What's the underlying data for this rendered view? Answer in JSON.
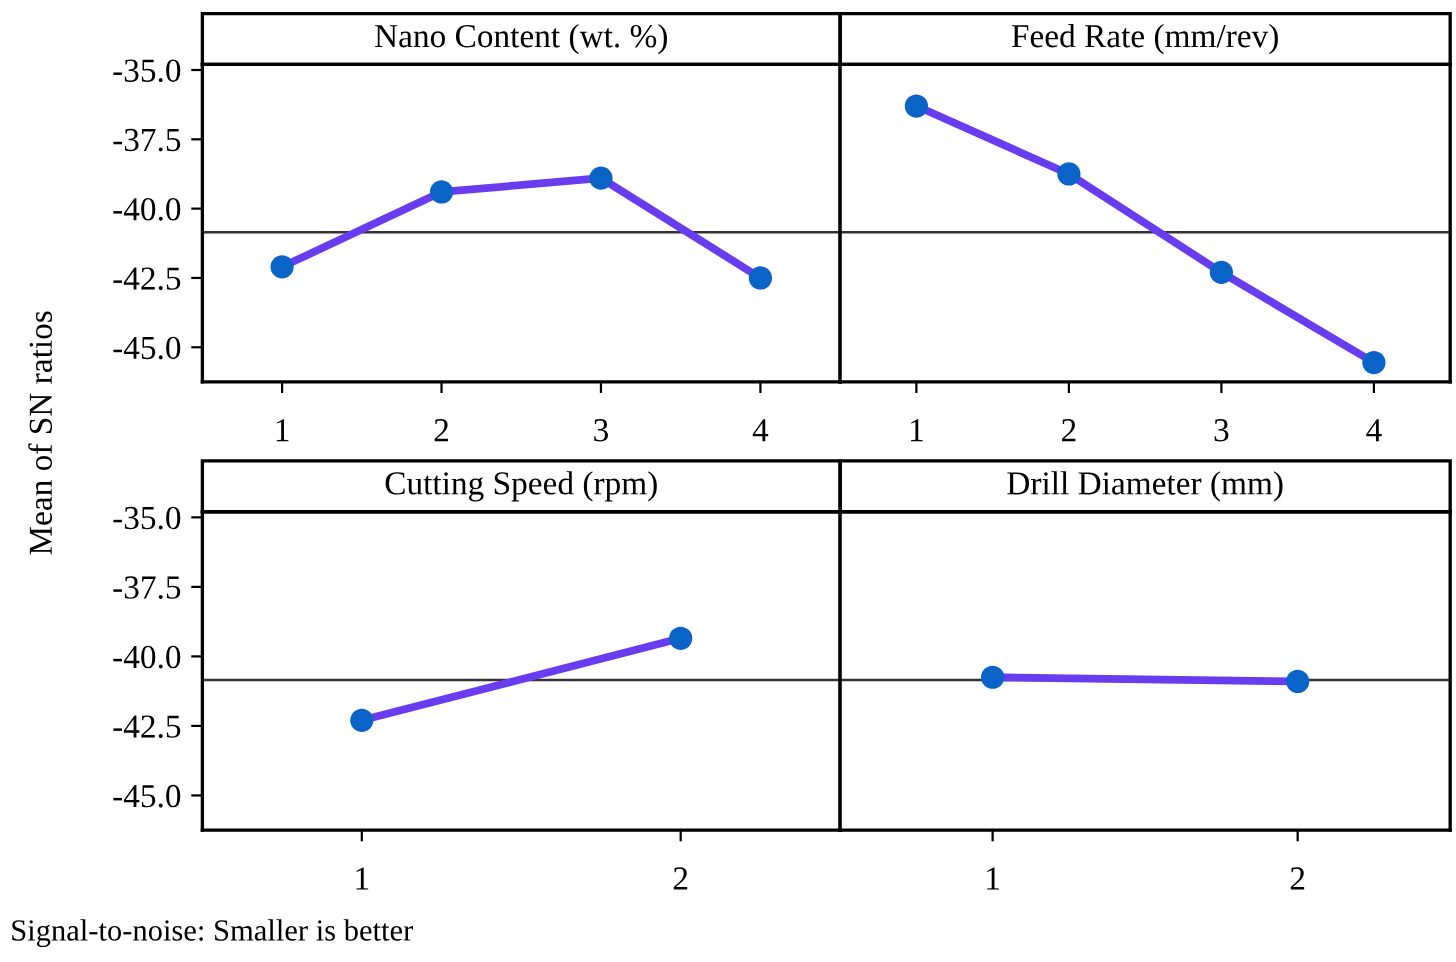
{
  "chart_data": [
    {
      "type": "line",
      "title": "Nano Content (wt. %)",
      "ylabel": "Mean of SN ratios",
      "x": [
        1,
        2,
        3,
        4
      ],
      "xlim": [
        0.5,
        4.5
      ],
      "xticks": [
        1,
        2,
        3,
        4
      ],
      "ylim": [
        -46.25,
        -34.8
      ],
      "yticks": [
        {
          "value": -35,
          "label": "-35.0"
        },
        {
          "value": -37.5,
          "label": "-37.5"
        },
        {
          "value": -40,
          "label": "-40.0"
        },
        {
          "value": -42.5,
          "label": "-42.5"
        },
        {
          "value": -45,
          "label": "-45.0"
        }
      ],
      "marker": "circle",
      "grid": false,
      "ref_lines": [
        {
          "axis": "y",
          "value": -40.85,
          "color": "#333333"
        }
      ],
      "series": [
        {
          "color": "#6a3cf0",
          "colors": [
            "#0a64c8",
            "#0a64c8",
            "#0a64c8",
            "#0a64c8"
          ],
          "values": [
            -42.1,
            -39.4,
            -38.9,
            -42.5
          ]
        }
      ]
    },
    {
      "type": "line",
      "title": "Feed Rate (mm/rev)",
      "x": [
        1,
        2,
        3,
        4
      ],
      "xlim": [
        0.5,
        4.5
      ],
      "xticks": [
        1,
        2,
        3,
        4
      ],
      "ylim": [
        -46.25,
        -34.8
      ],
      "tick_labels": "x",
      "marker": "circle",
      "grid": false,
      "ref_lines": [
        {
          "axis": "y",
          "value": -40.85,
          "color": "#333333"
        }
      ],
      "series": [
        {
          "color": "#6a3cf0",
          "colors": [
            "#0a64c8",
            "#0a64c8",
            "#0a64c8",
            "#0a64c8"
          ],
          "values": [
            -36.3,
            -38.75,
            -42.3,
            -45.55
          ]
        }
      ]
    },
    {
      "type": "line",
      "title": "Cutting Speed (rpm)",
      "x": [
        1,
        2
      ],
      "xlim": [
        0.5,
        2.5
      ],
      "xticks": [
        1,
        2
      ],
      "ylim": [
        -46.25,
        -34.8
      ],
      "yticks": [
        {
          "value": -35,
          "label": "-35.0"
        },
        {
          "value": -37.5,
          "label": "-37.5"
        },
        {
          "value": -40,
          "label": "-40.0"
        },
        {
          "value": -42.5,
          "label": "-42.5"
        },
        {
          "value": -45,
          "label": "-45.0"
        }
      ],
      "marker": "circle",
      "grid": false,
      "ref_lines": [
        {
          "axis": "y",
          "value": -40.85,
          "color": "#333333"
        }
      ],
      "annotations": [
        "Signal-to-noise: Smaller is better"
      ],
      "series": [
        {
          "color": "#6a3cf0",
          "colors": [
            "#0a64c8",
            "#0a64c8"
          ],
          "values": [
            -42.3,
            -39.35
          ]
        }
      ]
    },
    {
      "type": "line",
      "title": "Drill Diameter (mm)",
      "x": [
        1,
        2
      ],
      "xlim": [
        0.5,
        2.5
      ],
      "xticks": [
        1,
        2
      ],
      "ylim": [
        -46.25,
        -34.8
      ],
      "tick_labels": "x",
      "marker": "circle",
      "grid": false,
      "ref_lines": [
        {
          "axis": "y",
          "value": -40.85,
          "color": "#333333"
        }
      ],
      "series": [
        {
          "color": "#6a3cf0",
          "colors": [
            "#0a64c8",
            "#0a64c8"
          ],
          "values": [
            -40.75,
            -40.9
          ]
        }
      ]
    }
  ]
}
